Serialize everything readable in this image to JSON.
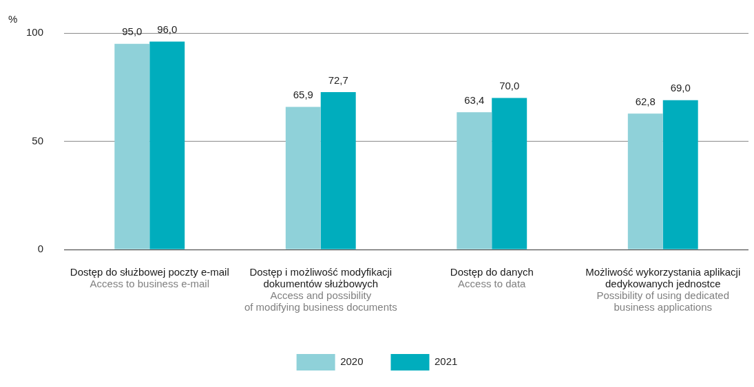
{
  "chart_data": {
    "type": "bar",
    "ylabel": "%",
    "categories": [
      "Dostęp do służbowej poczty e-mail\n\nAccess to business e-mail",
      "Dostęp i możliwość modyfikacji\ndokumentów służbowych\n\nAccess and possibility\nof modifying business documents",
      "Dostęp do danych\n\nAccess to data",
      "Możliwość wykorzystania aplikacji\ndedykowanych jednostce\n\nPossibility of using dedicated\nbusiness applications"
    ],
    "series": [
      {
        "name": "2020",
        "color": "#8fd1d9",
        "values": [
          95.0,
          65.9,
          63.4,
          62.8
        ],
        "value_labels": [
          "95,0",
          "65,9",
          "63,4",
          "62,8"
        ]
      },
      {
        "name": "2021",
        "color": "#00adbd",
        "values": [
          96.0,
          72.7,
          70.0,
          69.0
        ],
        "value_labels": [
          "96,0",
          "72,7",
          "70,0",
          "69,0"
        ]
      }
    ],
    "ylim": [
      0,
      100
    ],
    "yticks": [
      0,
      50,
      100
    ],
    "grid": "y",
    "legend": "bottom"
  }
}
